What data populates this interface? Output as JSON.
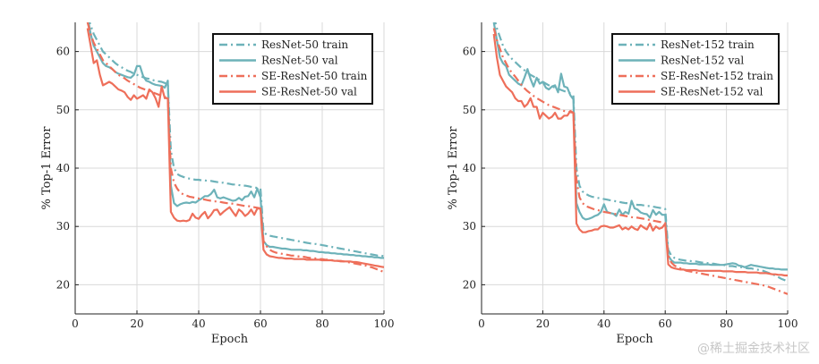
{
  "colors": {
    "resnet": "#6db2b9",
    "se": "#ee6f5a",
    "grid": "#d9d9d9",
    "axis": "#222222"
  },
  "watermark": "@稀土掘金技术社区",
  "chart_data": [
    {
      "type": "line",
      "title": "",
      "xlabel": "Epoch",
      "ylabel": "% Top-1 Error",
      "xlim": [
        0,
        100
      ],
      "ylim": [
        15,
        65
      ],
      "xticks": [
        0,
        20,
        40,
        60,
        80,
        100
      ],
      "yticks": [
        20,
        30,
        40,
        50,
        60
      ],
      "grid": true,
      "legend_position": "top-right",
      "x": [
        4,
        5,
        6,
        7,
        8,
        9,
        10,
        11,
        12,
        13,
        14,
        15,
        16,
        17,
        18,
        19,
        20,
        21,
        22,
        23,
        24,
        25,
        26,
        27,
        28,
        29,
        30,
        31,
        32,
        33,
        34,
        35,
        36,
        37,
        38,
        39,
        40,
        41,
        42,
        43,
        44,
        45,
        46,
        47,
        48,
        49,
        50,
        51,
        52,
        53,
        54,
        55,
        56,
        57,
        58,
        59,
        60,
        61,
        62,
        63,
        64,
        65,
        66,
        67,
        68,
        69,
        70,
        71,
        72,
        73,
        74,
        75,
        76,
        77,
        78,
        79,
        80,
        81,
        82,
        83,
        84,
        85,
        86,
        87,
        88,
        89,
        90,
        91,
        92,
        93,
        94,
        95,
        96,
        97,
        98,
        99,
        100
      ],
      "series": [
        {
          "name": "ResNet-50 train",
          "style": "dashdot",
          "color": "#6db2b9",
          "values": [
            66,
            64.5,
            63,
            62,
            61,
            60,
            59.5,
            59,
            58.5,
            58,
            57.6,
            57.3,
            57,
            56.7,
            56.5,
            56.2,
            56,
            55.8,
            55.6,
            55.4,
            55.3,
            55.1,
            55,
            54.9,
            54.8,
            54.6,
            54.5,
            43,
            40,
            39,
            38.7,
            38.5,
            38.3,
            38.2,
            38.1,
            38,
            38,
            37.9,
            37.9,
            37.8,
            37.8,
            37.7,
            37.6,
            37.5,
            37.5,
            37.4,
            37.3,
            37.2,
            37.2,
            37.1,
            37,
            37,
            36.9,
            36.8,
            36.7,
            36.6,
            36.5,
            29,
            28.6,
            28.4,
            28.3,
            28.2,
            28.1,
            28,
            27.9,
            27.8,
            27.7,
            27.6,
            27.5,
            27.4,
            27.3,
            27.2,
            27.1,
            27,
            27,
            26.9,
            26.8,
            26.7,
            26.6,
            26.5,
            26.4,
            26.3,
            26.2,
            26.1,
            26,
            25.9,
            25.8,
            25.7,
            25.6,
            25.5,
            25.4,
            25.3,
            25.2,
            25.1,
            25,
            25,
            24.9
          ]
        },
        {
          "name": "ResNet-50 val",
          "style": "solid",
          "color": "#6db2b9",
          "values": [
            66,
            63,
            61,
            60,
            59,
            58,
            57.5,
            57.3,
            57,
            56.5,
            56.2,
            56,
            55.8,
            55.6,
            55.5,
            56,
            57.5,
            57.5,
            55.8,
            55,
            54.8,
            54.5,
            54.3,
            54.2,
            54.1,
            53.8,
            55,
            37,
            34,
            33.5,
            33.8,
            34,
            34.1,
            34,
            34.2,
            34.1,
            34.5,
            34.8,
            35.2,
            35.2,
            35.6,
            36.3,
            35,
            34.8,
            35,
            34.8,
            34.6,
            34.4,
            34.5,
            34.9,
            34.5,
            35.1,
            35.2,
            36,
            35,
            36.5,
            35,
            27.5,
            26.8,
            26.5,
            26.5,
            26.4,
            26.3,
            26.2,
            26.2,
            26.1,
            26,
            26,
            26,
            26,
            25.9,
            25.9,
            25.8,
            25.8,
            25.7,
            25.6,
            25.6,
            25.5,
            25.5,
            25.4,
            25.4,
            25.3,
            25.3,
            25.2,
            25.2,
            25.1,
            25.1,
            25,
            25,
            24.9,
            24.9,
            24.8,
            24.8,
            24.7,
            24.7,
            24.6,
            24.6
          ]
        },
        {
          "name": "SE-ResNet-50 train",
          "style": "dashdot",
          "color": "#ee6f5a",
          "values": [
            65,
            63,
            61.5,
            60.5,
            59.5,
            58.5,
            58,
            57.5,
            57,
            56.5,
            56,
            55.7,
            55.4,
            55,
            54.7,
            54.4,
            54.1,
            53.8,
            53.6,
            53.4,
            53.2,
            53,
            52.8,
            52.6,
            52.4,
            52.2,
            52,
            40,
            37.5,
            36.5,
            35.8,
            35.5,
            35.3,
            35.1,
            35,
            34.9,
            34.8,
            34.7,
            34.6,
            34.5,
            34.4,
            34.3,
            34.3,
            34.2,
            34.1,
            34,
            34,
            33.9,
            33.8,
            33.7,
            33.6,
            33.5,
            33.5,
            33.4,
            33.3,
            33.2,
            33.1,
            27.5,
            26.6,
            26,
            25.7,
            25.5,
            25.4,
            25.3,
            25.2,
            25.1,
            25,
            25,
            24.9,
            24.8,
            24.8,
            24.7,
            24.6,
            24.6,
            24.5,
            24.4,
            24.4,
            24.3,
            24.3,
            24.2,
            24.2,
            24.1,
            24,
            24,
            23.9,
            23.8,
            23.7,
            23.6,
            23.5,
            23.4,
            23.3,
            23.1,
            23,
            22.8,
            22.6,
            22.4,
            22.2
          ]
        },
        {
          "name": "SE-ResNet-50 val",
          "style": "solid",
          "color": "#ee6f5a",
          "values": [
            64,
            61,
            58,
            58.5,
            56,
            54.2,
            54.5,
            54.8,
            54.5,
            54,
            53.5,
            53.3,
            53,
            52.2,
            51.7,
            52.5,
            51.9,
            52.2,
            52.5,
            51.9,
            53.5,
            53,
            52,
            50.5,
            54,
            52,
            52,
            32.5,
            31.5,
            31,
            30.9,
            31,
            30.9,
            31.1,
            32.2,
            31.5,
            31.3,
            32,
            32.5,
            31.4,
            32,
            32.8,
            32.9,
            32,
            32.5,
            32.9,
            33.3,
            32.5,
            31.8,
            32.9,
            32.5,
            31.8,
            32.2,
            32.9,
            32,
            33.1,
            33,
            26,
            25.2,
            24.9,
            24.8,
            24.7,
            24.6,
            24.6,
            24.5,
            24.5,
            24.5,
            24.4,
            24.4,
            24.4,
            24.4,
            24.3,
            24.3,
            24.3,
            24.3,
            24.3,
            24.2,
            24.2,
            24.2,
            24.2,
            24.1,
            24.1,
            24.1,
            24,
            24,
            24,
            23.9,
            23.9,
            23.8,
            23.7,
            23.6,
            23.5,
            23.4,
            23.3,
            23.2,
            23.1,
            23
          ]
        }
      ]
    },
    {
      "type": "line",
      "title": "",
      "xlabel": "Epoch",
      "ylabel": "% Top-1 Error",
      "xlim": [
        0,
        100
      ],
      "ylim": [
        15,
        65
      ],
      "xticks": [
        0,
        20,
        40,
        60,
        80,
        100
      ],
      "yticks": [
        20,
        30,
        40,
        50,
        60
      ],
      "grid": true,
      "legend_position": "top-right",
      "x": [
        4,
        5,
        6,
        7,
        8,
        9,
        10,
        11,
        12,
        13,
        14,
        15,
        16,
        17,
        18,
        19,
        20,
        21,
        22,
        23,
        24,
        25,
        26,
        27,
        28,
        29,
        30,
        31,
        32,
        33,
        34,
        35,
        36,
        37,
        38,
        39,
        40,
        41,
        42,
        43,
        44,
        45,
        46,
        47,
        48,
        49,
        50,
        51,
        52,
        53,
        54,
        55,
        56,
        57,
        58,
        59,
        60,
        61,
        62,
        63,
        64,
        65,
        66,
        67,
        68,
        69,
        70,
        71,
        72,
        73,
        74,
        75,
        76,
        77,
        78,
        79,
        80,
        81,
        82,
        83,
        84,
        85,
        86,
        87,
        88,
        89,
        90,
        91,
        92,
        93,
        94,
        95,
        96,
        97,
        98,
        99,
        100
      ],
      "series": [
        {
          "name": "ResNet-152 train",
          "style": "dashdot",
          "color": "#6db2b9",
          "values": [
            66,
            64,
            62.5,
            61,
            60,
            59.3,
            58.7,
            58.2,
            57.7,
            57.2,
            56.8,
            56.4,
            56,
            55.7,
            55.4,
            55.1,
            54.8,
            54.5,
            54.2,
            54,
            53.8,
            53.6,
            53.4,
            53.2,
            53,
            52.8,
            52.5,
            40,
            37,
            36,
            35.6,
            35.3,
            35.1,
            35,
            34.9,
            34.8,
            34.7,
            34.6,
            34.5,
            34.4,
            34.3,
            34.2,
            34.1,
            34,
            34,
            33.9,
            33.8,
            33.7,
            33.7,
            33.6,
            33.5,
            33.5,
            33.4,
            33.3,
            33.2,
            33.1,
            33,
            26,
            25,
            24.6,
            24.4,
            24.3,
            24.2,
            24.1,
            24.1,
            24,
            24,
            23.9,
            23.8,
            23.8,
            23.7,
            23.6,
            23.6,
            23.5,
            23.4,
            23.4,
            23.3,
            23.2,
            23.2,
            23.1,
            23,
            23,
            22.9,
            22.8,
            22.8,
            22.7,
            22.6,
            22.5,
            22.4,
            22.2,
            22,
            21.8,
            21.6,
            21.3,
            21,
            20.8,
            20.5
          ]
        },
        {
          "name": "ResNet-152 val",
          "style": "solid",
          "color": "#6db2b9",
          "values": [
            65,
            62,
            59,
            58,
            57.5,
            56,
            55.5,
            55,
            54.5,
            54.2,
            55.5,
            57,
            55.3,
            54,
            55.5,
            54.5,
            54.8,
            53.8,
            53.5,
            54,
            54.2,
            53,
            56.2,
            54,
            53.8,
            52.5,
            51.8,
            34,
            32.5,
            31.5,
            31.2,
            31.3,
            31.5,
            31.8,
            32,
            32.5,
            33.8,
            32.5,
            32.3,
            32.2,
            31.8,
            32.9,
            32,
            32.5,
            32.2,
            34.4,
            33.1,
            32.9,
            32.4,
            32.2,
            32.1,
            31.5,
            32.8,
            32,
            32.5,
            32,
            32,
            25,
            24.2,
            23.8,
            23.8,
            23.8,
            23.7,
            23.7,
            23.6,
            23.6,
            23.6,
            23.5,
            23.5,
            23.5,
            23.5,
            23.4,
            23.4,
            23.4,
            23.4,
            23.4,
            23.5,
            23.6,
            23.7,
            23.6,
            23.3,
            23.2,
            23,
            23.2,
            23.4,
            23.3,
            23.2,
            23.1,
            23,
            22.9,
            22.8,
            22.8,
            22.7,
            22.7,
            22.6,
            22.6,
            22.6
          ]
        },
        {
          "name": "SE-ResNet-152 train",
          "style": "dashdot",
          "color": "#ee6f5a",
          "values": [
            64,
            62,
            60.5,
            59,
            58,
            57,
            56.3,
            55.7,
            55,
            54.3,
            53.7,
            53.2,
            52.8,
            52.4,
            52,
            51.7,
            51.4,
            51.1,
            50.8,
            50.6,
            50.4,
            50.2,
            50,
            49.8,
            49.7,
            49.6,
            49.5,
            38,
            35,
            34,
            33.5,
            33.3,
            33.1,
            32.9,
            32.8,
            32.6,
            32.5,
            32.4,
            32.3,
            32.2,
            32.1,
            32,
            31.9,
            31.8,
            31.7,
            31.6,
            31.5,
            31.5,
            31.4,
            31.3,
            31.2,
            31.1,
            31,
            30.9,
            30.8,
            30.7,
            30.6,
            25,
            23.8,
            23.3,
            23,
            22.8,
            22.6,
            22.4,
            22.3,
            22.2,
            22.1,
            22,
            21.9,
            21.8,
            21.7,
            21.6,
            21.5,
            21.4,
            21.3,
            21.2,
            21.1,
            21,
            20.9,
            20.8,
            20.7,
            20.6,
            20.5,
            20.4,
            20.3,
            20.2,
            20.1,
            20,
            19.9,
            19.8,
            19.6,
            19.4,
            19.2,
            19,
            18.8,
            18.6,
            18.4
          ]
        },
        {
          "name": "SE-ResNet-152 val",
          "style": "solid",
          "color": "#ee6f5a",
          "values": [
            63,
            59,
            56,
            55,
            54,
            53.5,
            53,
            52,
            51.5,
            51.5,
            50.5,
            51,
            52,
            50.5,
            50.5,
            48.5,
            49.5,
            49,
            48.5,
            48.8,
            49.5,
            48.5,
            48.5,
            49,
            49,
            49.8,
            49.5,
            30.5,
            29.5,
            29,
            29,
            29.2,
            29.3,
            29.5,
            29.5,
            30,
            30.1,
            30,
            29.8,
            29.8,
            30,
            30.2,
            29.5,
            29.8,
            29.5,
            30,
            29.6,
            29.4,
            30.2,
            29.8,
            29.5,
            30.5,
            29.3,
            30,
            29.6,
            29.8,
            30.5,
            23.5,
            23,
            22.8,
            22.7,
            22.6,
            22.6,
            22.5,
            22.5,
            22.5,
            22.5,
            22.4,
            22.4,
            22.4,
            22.4,
            22.4,
            22.4,
            22.4,
            22.4,
            22.3,
            22.3,
            22.3,
            22.3,
            22.2,
            22.2,
            22.2,
            22.2,
            22.1,
            22.1,
            22.1,
            22.1,
            22,
            22,
            22,
            21.9,
            21.8,
            21.8,
            21.7,
            21.7,
            21.6,
            21.6
          ]
        }
      ]
    }
  ]
}
